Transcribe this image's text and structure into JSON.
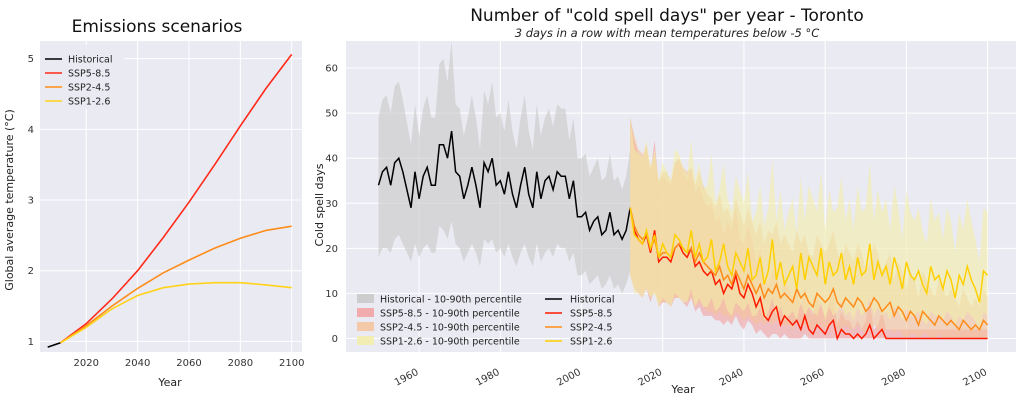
{
  "chart_data": [
    {
      "type": "line",
      "title": "Emissions scenarios",
      "xlabel": "Year",
      "ylabel": "Global average temperature (°C)",
      "xlim": [
        2002,
        2104
      ],
      "ylim": [
        0.85,
        5.25
      ],
      "xticks": [
        2020,
        2040,
        2060,
        2080,
        2100
      ],
      "yticks": [
        1,
        2,
        3,
        4,
        5
      ],
      "legend_position": "top-left",
      "grid": true,
      "series": [
        {
          "name": "Historical",
          "color": "#000000",
          "x": [
            2005,
            2010
          ],
          "y": [
            0.92,
            0.98
          ]
        },
        {
          "name": "SSP5-8.5",
          "color": "#ff2a1a",
          "x": [
            2010,
            2020,
            2030,
            2040,
            2050,
            2060,
            2070,
            2080,
            2090,
            2100
          ],
          "y": [
            0.98,
            1.25,
            1.6,
            2.0,
            2.47,
            2.97,
            3.5,
            4.05,
            4.58,
            5.06
          ]
        },
        {
          "name": "SSP2-4.5",
          "color": "#ff8c1a",
          "x": [
            2010,
            2020,
            2030,
            2040,
            2050,
            2060,
            2070,
            2080,
            2090,
            2100
          ],
          "y": [
            0.98,
            1.22,
            1.5,
            1.75,
            1.97,
            2.15,
            2.32,
            2.46,
            2.57,
            2.63
          ]
        },
        {
          "name": "SSP1-2.6",
          "color": "#ffd21a",
          "x": [
            2010,
            2020,
            2030,
            2040,
            2050,
            2060,
            2070,
            2080,
            2090,
            2100
          ],
          "y": [
            0.98,
            1.2,
            1.46,
            1.65,
            1.76,
            1.81,
            1.83,
            1.83,
            1.8,
            1.76
          ]
        }
      ]
    },
    {
      "type": "line",
      "title": "Number of \"cold spell days\" per year - Toronto",
      "subtitle": "3 days in a row with mean temperatures below -5 °C",
      "xlabel": "Year",
      "ylabel": "Cold spell days",
      "xlim": [
        1942,
        2107
      ],
      "ylim": [
        -3,
        66
      ],
      "xticks": [
        1960,
        1980,
        2000,
        2020,
        2040,
        2060,
        2080,
        2100
      ],
      "yticks": [
        0,
        10,
        20,
        30,
        40,
        50,
        60
      ],
      "legend_position": "bottom-left",
      "grid": true,
      "legend": {
        "bands": [
          "Historical - 10-90th percentile",
          "SSP5-8.5 - 10-90th percentile",
          "SSP2-4.5 - 10-90th percentile",
          "SSP1-2.6 - 10-90th percentile"
        ],
        "lines": [
          "Historical",
          "SSP5-8.5",
          "SSP2-4.5",
          "SSP1-2.6"
        ]
      },
      "series": [
        {
          "name": "Historical",
          "color": "#000000",
          "band_color": "#c8c8c8",
          "x_start": 1950,
          "values": [
            34,
            37,
            38,
            34,
            39,
            40,
            37,
            33,
            29,
            37,
            31,
            36,
            38,
            34,
            34,
            43,
            43,
            40,
            46,
            37,
            36,
            31,
            34,
            38,
            34,
            29,
            39,
            37,
            40,
            34,
            35,
            32,
            37,
            32,
            29,
            34,
            38,
            32,
            29,
            37,
            31,
            35,
            36,
            33,
            37,
            36,
            36,
            31,
            35,
            27,
            27,
            28,
            24,
            26,
            27,
            23,
            24,
            28,
            23,
            24,
            22,
            24,
            29
          ],
          "p10": [
            18,
            20,
            20,
            19,
            22,
            23,
            21,
            19,
            17,
            21,
            18,
            20,
            21,
            19,
            19,
            25,
            24,
            22,
            26,
            21,
            20,
            17,
            19,
            21,
            19,
            16,
            22,
            21,
            22,
            19,
            20,
            18,
            21,
            18,
            16,
            19,
            21,
            18,
            16,
            21,
            17,
            19,
            20,
            18,
            21,
            20,
            20,
            17,
            19,
            14,
            14,
            15,
            12,
            13,
            14,
            11,
            12,
            14,
            11,
            12,
            10,
            12,
            15
          ],
          "p90": [
            49,
            53,
            54,
            50,
            56,
            57,
            53,
            48,
            43,
            52,
            45,
            51,
            54,
            49,
            49,
            61,
            62,
            57,
            66,
            52,
            51,
            45,
            49,
            54,
            49,
            42,
            55,
            52,
            57,
            49,
            50,
            46,
            53,
            46,
            42,
            49,
            54,
            46,
            42,
            52,
            45,
            49,
            51,
            47,
            52,
            51,
            51,
            44,
            49,
            40,
            40,
            41,
            36,
            38,
            40,
            35,
            36,
            41,
            35,
            36,
            33,
            36,
            42
          ]
        },
        {
          "name": "SSP5-8.5",
          "color": "#ff1a00",
          "band_color": "#f2a0a0",
          "x_start": 2012,
          "values": [
            29,
            24,
            22,
            21,
            23,
            19,
            24,
            17,
            18,
            18,
            17,
            20,
            21,
            19,
            18,
            20,
            16,
            17,
            15,
            14,
            15,
            12,
            13,
            10,
            12,
            11,
            14,
            10,
            9,
            12,
            10,
            7,
            9,
            5,
            4,
            6,
            7,
            3,
            5,
            4,
            3,
            4,
            2,
            5,
            2,
            1,
            3,
            2,
            1,
            3,
            4,
            0,
            2,
            1,
            1,
            0,
            1,
            0,
            1,
            3,
            0,
            1,
            2,
            0,
            0,
            0,
            0,
            0,
            0,
            0,
            0,
            0,
            0,
            0,
            0,
            0,
            0,
            0,
            0,
            0,
            0,
            0,
            0,
            0,
            0,
            0,
            0,
            0,
            0
          ],
          "p10": [
            14,
            11,
            10,
            9,
            11,
            8,
            11,
            7,
            8,
            8,
            7,
            9,
            9,
            8,
            7,
            9,
            6,
            7,
            5,
            5,
            5,
            4,
            4,
            3,
            4,
            3,
            5,
            3,
            2,
            4,
            3,
            1,
            2,
            1,
            0,
            1,
            1,
            0,
            1,
            0,
            0,
            0,
            0,
            1,
            0,
            0,
            0,
            0,
            0,
            0,
            0,
            0,
            0,
            0,
            0,
            0,
            0,
            0,
            0,
            0,
            0,
            0,
            0,
            0,
            0,
            0,
            0,
            0,
            0,
            0,
            0,
            0,
            0,
            0,
            0,
            0,
            0,
            0,
            0,
            0,
            0,
            0,
            0,
            0,
            0,
            0,
            0,
            0,
            0
          ],
          "p90": [
            49,
            44,
            41,
            40,
            43,
            37,
            44,
            34,
            36,
            35,
            34,
            39,
            40,
            37,
            35,
            38,
            32,
            34,
            31,
            29,
            30,
            26,
            27,
            23,
            26,
            24,
            29,
            22,
            21,
            25,
            22,
            17,
            20,
            13,
            12,
            15,
            16,
            9,
            13,
            11,
            9,
            11,
            7,
            12,
            7,
            5,
            9,
            7,
            5,
            8,
            10,
            3,
            6,
            4,
            4,
            2,
            4,
            2,
            4,
            8,
            2,
            3,
            6,
            2,
            2,
            2,
            2,
            2,
            2,
            2,
            2,
            2,
            2,
            2,
            2,
            2,
            2,
            2,
            2,
            2,
            2,
            2,
            2,
            2,
            2,
            2,
            2,
            2,
            2
          ]
        },
        {
          "name": "SSP2-4.5",
          "color": "#ff8c1a",
          "band_color": "#f5c39a",
          "x_start": 2012,
          "values": [
            29,
            25,
            23,
            22,
            23,
            20,
            22,
            18,
            19,
            19,
            18,
            20,
            21,
            20,
            19,
            20,
            17,
            19,
            17,
            16,
            15,
            14,
            16,
            13,
            14,
            12,
            15,
            13,
            11,
            14,
            12,
            10,
            12,
            9,
            11,
            10,
            12,
            9,
            10,
            9,
            8,
            11,
            9,
            10,
            8,
            7,
            10,
            9,
            8,
            9,
            11,
            8,
            7,
            9,
            8,
            7,
            9,
            8,
            6,
            7,
            9,
            8,
            6,
            7,
            8,
            5,
            7,
            6,
            4,
            6,
            5,
            3,
            6,
            5,
            4,
            3,
            5,
            4,
            3,
            4,
            3,
            2,
            4,
            3,
            2,
            3,
            2,
            4,
            3
          ],
          "p10": [
            14,
            12,
            11,
            10,
            11,
            9,
            10,
            8,
            8,
            8,
            8,
            9,
            9,
            9,
            8,
            9,
            7,
            8,
            7,
            6,
            6,
            5,
            6,
            5,
            5,
            4,
            6,
            5,
            4,
            5,
            4,
            3,
            4,
            3,
            4,
            3,
            4,
            3,
            3,
            3,
            2,
            4,
            3,
            3,
            2,
            2,
            3,
            3,
            2,
            3,
            4,
            2,
            2,
            3,
            2,
            2,
            3,
            2,
            1,
            2,
            3,
            2,
            1,
            2,
            2,
            1,
            2,
            1,
            0,
            1,
            1,
            0,
            1,
            1,
            0,
            0,
            1,
            0,
            0,
            0,
            0,
            0,
            0,
            0,
            0,
            0,
            0,
            0,
            0
          ],
          "p90": [
            49,
            45,
            42,
            41,
            42,
            38,
            41,
            35,
            37,
            37,
            35,
            38,
            40,
            38,
            37,
            38,
            34,
            37,
            34,
            32,
            31,
            29,
            32,
            28,
            29,
            26,
            31,
            28,
            25,
            29,
            26,
            23,
            26,
            21,
            24,
            23,
            26,
            21,
            23,
            21,
            19,
            24,
            21,
            23,
            19,
            18,
            23,
            21,
            19,
            21,
            24,
            19,
            17,
            21,
            19,
            17,
            21,
            19,
            15,
            17,
            21,
            19,
            15,
            17,
            19,
            13,
            17,
            15,
            11,
            15,
            13,
            9,
            15,
            13,
            11,
            9,
            13,
            11,
            9,
            11,
            9,
            7,
            11,
            9,
            7,
            9,
            7,
            11,
            9
          ]
        },
        {
          "name": "SSP1-2.6",
          "color": "#ffd000",
          "band_color": "#f2eda8",
          "x_start": 2012,
          "values": [
            29,
            23,
            22,
            21,
            24,
            20,
            23,
            18,
            21,
            19,
            18,
            23,
            22,
            20,
            19,
            24,
            18,
            21,
            17,
            18,
            22,
            15,
            17,
            21,
            16,
            14,
            19,
            17,
            15,
            20,
            13,
            14,
            18,
            12,
            15,
            22,
            13,
            17,
            12,
            14,
            16,
            11,
            19,
            13,
            18,
            16,
            14,
            20,
            12,
            17,
            14,
            15,
            19,
            13,
            16,
            12,
            18,
            14,
            15,
            21,
            13,
            17,
            14,
            16,
            12,
            18,
            15,
            11,
            17,
            14,
            13,
            15,
            12,
            10,
            16,
            13,
            14,
            11,
            15,
            13,
            9,
            14,
            12,
            16,
            13,
            11,
            8,
            15,
            14
          ],
          "p10": [
            14,
            10,
            10,
            9,
            11,
            9,
            10,
            7,
            9,
            8,
            7,
            10,
            9,
            8,
            8,
            11,
            7,
            9,
            7,
            7,
            9,
            6,
            7,
            9,
            6,
            5,
            8,
            7,
            6,
            8,
            5,
            5,
            7,
            4,
            6,
            9,
            5,
            7,
            4,
            5,
            6,
            4,
            8,
            5,
            7,
            6,
            5,
            8,
            4,
            7,
            5,
            6,
            8,
            5,
            6,
            4,
            7,
            5,
            6,
            9,
            5,
            7,
            5,
            6,
            4,
            7,
            6,
            4,
            7,
            5,
            5,
            6,
            4,
            3,
            6,
            5,
            5,
            4,
            6,
            5,
            3,
            5,
            4,
            6,
            5,
            4,
            2,
            6,
            5
          ],
          "p90": [
            49,
            42,
            41,
            40,
            44,
            38,
            42,
            35,
            39,
            37,
            35,
            42,
            41,
            38,
            36,
            44,
            35,
            39,
            33,
            34,
            41,
            30,
            33,
            39,
            31,
            28,
            36,
            33,
            30,
            37,
            26,
            28,
            34,
            25,
            29,
            40,
            26,
            33,
            24,
            28,
            31,
            23,
            36,
            26,
            34,
            31,
            28,
            37,
            24,
            33,
            28,
            29,
            36,
            26,
            31,
            24,
            34,
            28,
            29,
            39,
            26,
            33,
            28,
            31,
            24,
            34,
            29,
            22,
            33,
            28,
            26,
            29,
            24,
            21,
            31,
            26,
            28,
            22,
            29,
            26,
            19,
            28,
            24,
            31,
            26,
            22,
            17,
            29,
            28
          ]
        }
      ]
    }
  ]
}
